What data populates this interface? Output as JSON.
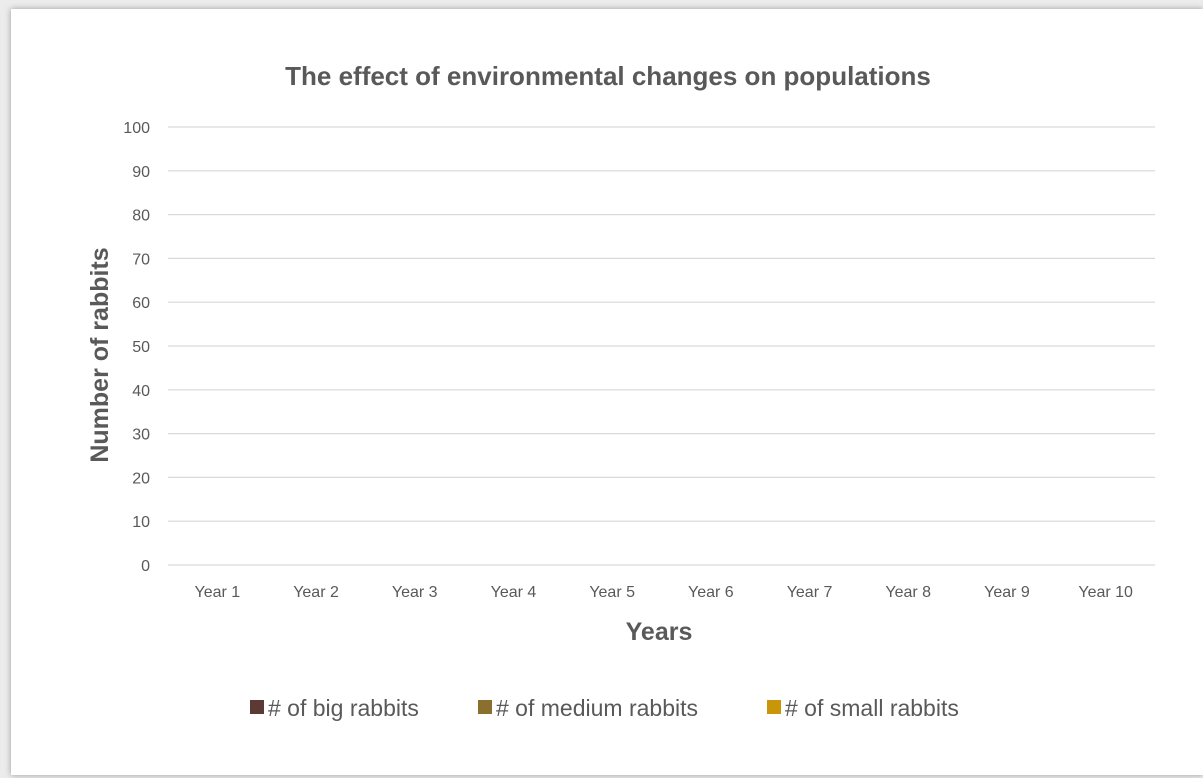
{
  "chart_data": {
    "type": "bar",
    "title": "The effect of environmental changes on populations",
    "xlabel": "Years",
    "ylabel": "Number of rabbits",
    "categories": [
      "Year 1",
      "Year 2",
      "Year 3",
      "Year 4",
      "Year 5",
      "Year 6",
      "Year 7",
      "Year 8",
      "Year 9",
      "Year 10"
    ],
    "ylim": [
      0,
      100
    ],
    "yticks": [
      0,
      10,
      20,
      30,
      40,
      50,
      60,
      70,
      80,
      90,
      100
    ],
    "grid": true,
    "legend_position": "bottom",
    "series": [
      {
        "name": "# of big rabbits",
        "color": "#5b3a36",
        "values": [
          null,
          null,
          null,
          null,
          null,
          null,
          null,
          null,
          null,
          null
        ]
      },
      {
        "name": "# of medium rabbits",
        "color": "#8b6f2e",
        "values": [
          null,
          null,
          null,
          null,
          null,
          null,
          null,
          null,
          null,
          null
        ]
      },
      {
        "name": "# of small rabbits",
        "color": "#c9960a",
        "values": [
          null,
          null,
          null,
          null,
          null,
          null,
          null,
          null,
          null,
          null
        ]
      }
    ]
  }
}
